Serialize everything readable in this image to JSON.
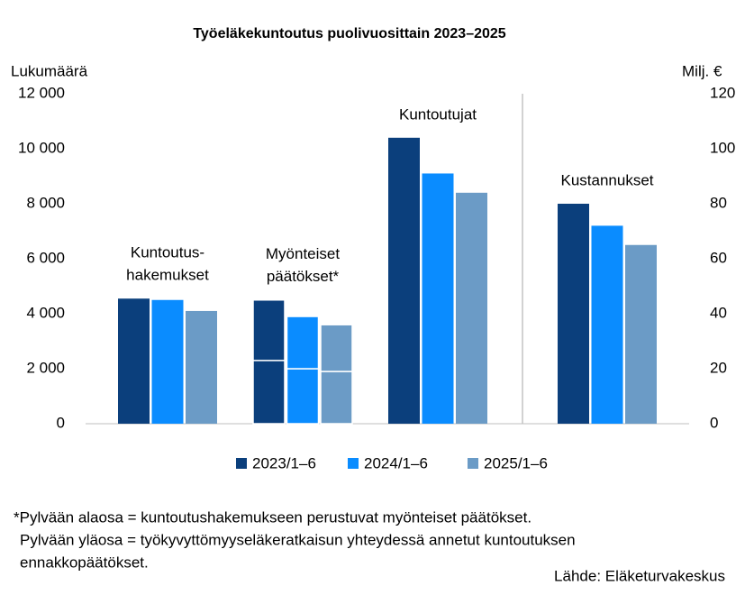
{
  "chart_data": {
    "type": "grouped_bar",
    "title": "Työeläkekuntoutus puolivuosittain 2023–2025",
    "y_label": "Lukumäärä",
    "y2_label": "Milj. €",
    "ylim": [
      0,
      12000
    ],
    "yticks": [
      0,
      {
        "value": 2000,
        "label": "2 000"
      },
      {
        "value": 4000,
        "label": "4 000"
      },
      {
        "value": 6000,
        "label": "6 000"
      },
      {
        "value": 8000,
        "label": "8 000"
      },
      {
        "value": 10000,
        "label": "10 000"
      },
      {
        "value": 12000,
        "label": "12 000"
      }
    ],
    "y2lim": [
      0,
      120
    ],
    "y2ticks": [
      0,
      20,
      40,
      60,
      80,
      100,
      120
    ],
    "series": [
      {
        "name": "2023/1–6",
        "color": "#0b3f7c"
      },
      {
        "name": "2024/1–6",
        "color": "#0a8cff"
      },
      {
        "name": "2025/1–6",
        "color": "#6b9bc6"
      }
    ],
    "groups": [
      {
        "label": [
          "Kuntoutus-",
          "hakemukset"
        ],
        "values": [
          4550,
          4500,
          4100
        ]
      },
      {
        "label": [
          "Myönteiset",
          "päätökset*"
        ],
        "stacks": [
          [
            2300,
            2200
          ],
          [
            2000,
            1900
          ],
          [
            1900,
            1700
          ]
        ]
      },
      {
        "label": [
          "Kuntoutujat"
        ],
        "values": [
          10400,
          9100,
          8400
        ]
      },
      {
        "label": [
          "Kustannukset"
        ],
        "axis": "y2",
        "values": [
          80,
          72,
          65
        ]
      }
    ],
    "footnote": [
      "*Pylvään alaosa = kuntoutushakemukseen perustuvat myönteiset päätökset.",
      "Pylvään yläosa = työkyvyttömyyseläkeratkaisun yhteydessä annetut kuntoutuksen",
      "ennakkopäätökset."
    ],
    "source": "Lähde: Eläketurvakeskus"
  }
}
